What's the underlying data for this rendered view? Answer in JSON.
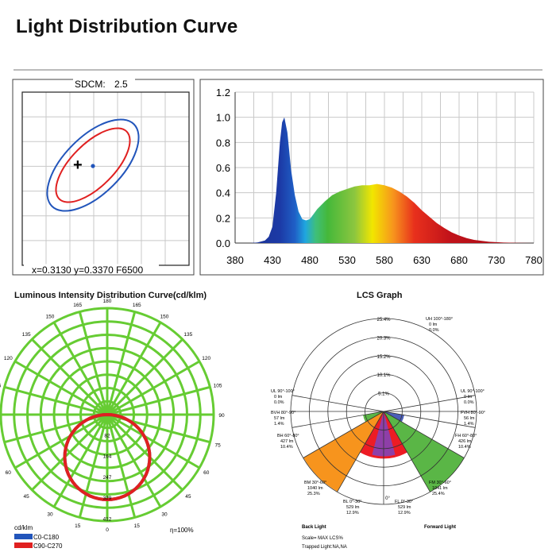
{
  "page": {
    "title": "Light Distribution Curve"
  },
  "sdcm": {
    "label": "SDCM:",
    "value": "2.5",
    "coords": "x=0.3130 y=0.3370 F6500",
    "marker": "+"
  },
  "colors": {
    "grid": "#c8c8c8",
    "cd_series": "#2255bb",
    "c90_series": "#e02020",
    "polar_grid": "#66cc33",
    "lcs_green": "#5ab646",
    "lcs_orange": "#f7941d",
    "lcs_red": "#ed1c24",
    "lcs_purple": "#8e3fa8"
  },
  "chart_data": [
    {
      "type": "area",
      "title": "",
      "xlabel": "",
      "ylabel": "",
      "xlim": [
        380,
        780
      ],
      "ylim": [
        0,
        1.2
      ],
      "x_ticks": [
        "380",
        "430",
        "480",
        "530",
        "580",
        "630",
        "680",
        "730",
        "780"
      ],
      "y_ticks": [
        "0.0",
        "0.2",
        "0.4",
        "0.6",
        "0.8",
        "1.0",
        "1.2"
      ],
      "grid": true,
      "series": [
        {
          "x": [
            380,
            400,
            410,
            420,
            425,
            430,
            435,
            440,
            443,
            446,
            450,
            455,
            460,
            465,
            470,
            475,
            480,
            485,
            490,
            500,
            510,
            520,
            530,
            540,
            550,
            560,
            570,
            580,
            590,
            600,
            610,
            620,
            630,
            640,
            650,
            660,
            670,
            680,
            690,
            700,
            720,
            740,
            760,
            780
          ],
          "values": [
            0.0,
            0.0,
            0.005,
            0.02,
            0.05,
            0.13,
            0.4,
            0.8,
            0.96,
            1.0,
            0.88,
            0.58,
            0.38,
            0.25,
            0.19,
            0.18,
            0.19,
            0.23,
            0.27,
            0.33,
            0.38,
            0.41,
            0.43,
            0.45,
            0.46,
            0.46,
            0.47,
            0.46,
            0.44,
            0.41,
            0.37,
            0.32,
            0.26,
            0.21,
            0.16,
            0.12,
            0.085,
            0.06,
            0.04,
            0.025,
            0.01,
            0.004,
            0.001,
            0.0
          ]
        }
      ]
    },
    {
      "type": "polar",
      "title": "Luminous Intensity Distribution Curve(cd/klm)",
      "unit": "cd/klm",
      "efficiency": "η=100%",
      "angle_labels": [
        "180",
        "165",
        "165",
        "150",
        "150",
        "135",
        "135",
        "120",
        "120",
        "105",
        "105",
        "90",
        "90",
        "75",
        "75",
        "60",
        "60",
        "45",
        "45",
        "30",
        "30",
        "15",
        "15",
        "0"
      ],
      "radial_labels": [
        "82",
        "164",
        "247",
        "329",
        "412"
      ],
      "rmax": 412,
      "legend": [
        "C0-C180",
        "C90-C270"
      ],
      "series": [
        {
          "name": "C0-C180",
          "shape": "cosine",
          "peak": 329
        },
        {
          "name": "C90-C270",
          "shape": "cosine",
          "peak": 329
        }
      ]
    },
    {
      "type": "polar",
      "title": "LCS Graph",
      "ring_labels": [
        "25.4%",
        "20.3%",
        "15.2%",
        "10.1%",
        "5.1%"
      ],
      "scale_max": 25.4,
      "zero_label": "0°",
      "zones": [
        {
          "lines": [
            "UH 100°-180°",
            "0 lm",
            "0.0%"
          ],
          "value": 0.0
        },
        {
          "lines": [
            "UL 90°-100°",
            "0 lm",
            "0.0%"
          ],
          "value": 0.0
        },
        {
          "lines": [
            "UL 90°-100°",
            "0 lm",
            "0.0%"
          ],
          "value": 0.0
        },
        {
          "lines": [
            "BVH 80°-90°",
            "57 lm",
            "1.4%"
          ],
          "value": 1.4
        },
        {
          "lines": [
            "FVH 80°-90°",
            "56 lm",
            "1.4%"
          ],
          "value": 1.4
        },
        {
          "lines": [
            "BH 60°-80°",
            "427 lm",
            "10.4%"
          ],
          "value": 10.4
        },
        {
          "lines": [
            "FH 60°-80°",
            "426 lm",
            "10.4%"
          ],
          "value": 10.4
        },
        {
          "lines": [
            "BM 30°-60°",
            "1040 lm",
            "25.3%"
          ],
          "value": 25.3
        },
        {
          "lines": [
            "FM 30°-60°",
            "1041 lm",
            "25.4%"
          ],
          "value": 25.4
        },
        {
          "lines": [
            "BL 0°-30°",
            "529 lm",
            "12.9%"
          ],
          "value": 12.9
        },
        {
          "lines": [
            "FL 0°-30°",
            "529 lm",
            "12.9%"
          ],
          "value": 12.9
        }
      ],
      "footer_left": "Back Light",
      "footer_right": "Forward Light",
      "footer_notes": [
        "Scale= MAX LCS%",
        "Trapped Light:NA,NA"
      ]
    }
  ]
}
